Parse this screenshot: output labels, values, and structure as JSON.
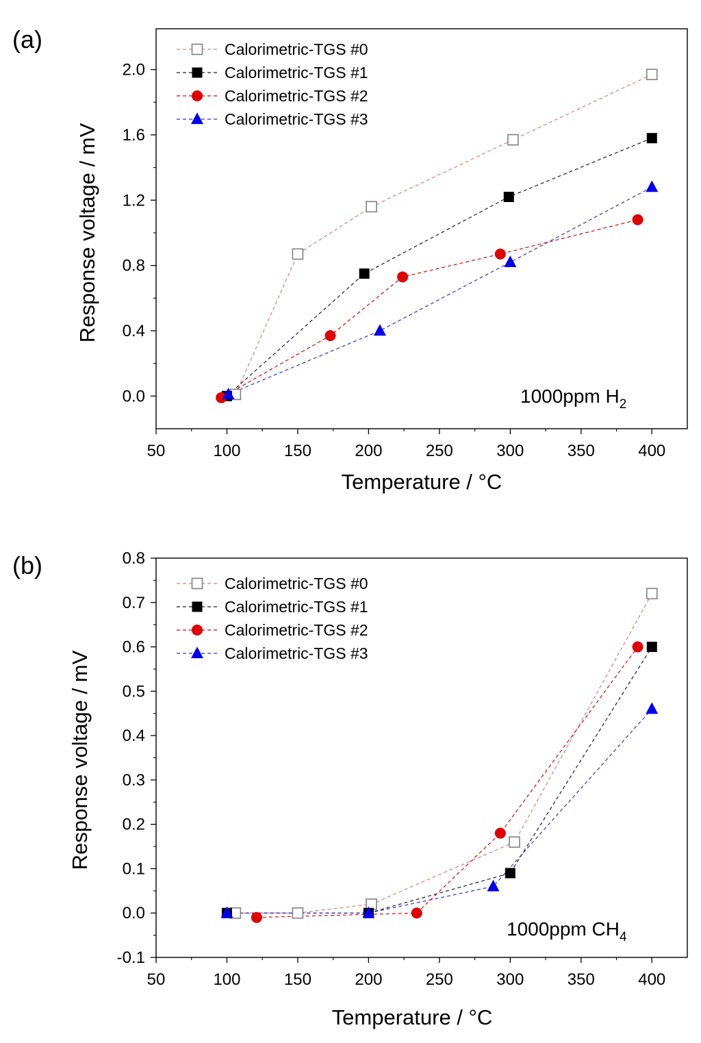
{
  "series_styles": [
    {
      "marker": "open-square",
      "color": "#808080",
      "line_color": "#d08080"
    },
    {
      "marker": "filled-square",
      "color": "#000000",
      "line_color": "#1a1a33"
    },
    {
      "marker": "circle",
      "color": "#e00000",
      "line_color": "#e00000"
    },
    {
      "marker": "triangle",
      "color": "#0000ee",
      "line_color": "#3030cc"
    }
  ],
  "chart_data": [
    {
      "type": "scatter",
      "panel_label": "(a)",
      "xlabel": "Temperature / °C",
      "ylabel": "Response voltage / mV",
      "xlim": [
        50,
        425
      ],
      "ylim": [
        -0.2,
        2.25
      ],
      "x_ticks": [
        50,
        100,
        150,
        200,
        250,
        300,
        350,
        400
      ],
      "y_ticks": [
        "0.0",
        "0.4",
        "0.8",
        "1.2",
        "1.6",
        "2.0"
      ],
      "legend_position": "top-left",
      "annotation": {
        "main": "1000ppm H",
        "sub": "2"
      },
      "series": [
        {
          "name": "Calorimetric-TGS #0",
          "x": [
            106,
            150,
            202,
            302,
            400
          ],
          "y": [
            0.01,
            0.87,
            1.16,
            1.57,
            1.97
          ]
        },
        {
          "name": "Calorimetric-TGS #1",
          "x": [
            100,
            197,
            299,
            400
          ],
          "y": [
            0.0,
            0.75,
            1.22,
            1.58
          ]
        },
        {
          "name": "Calorimetric-TGS #2",
          "x": [
            96,
            173,
            224,
            293,
            390
          ],
          "y": [
            -0.01,
            0.37,
            0.73,
            0.87,
            1.08
          ]
        },
        {
          "name": "Calorimetric-TGS #3",
          "x": [
            101,
            208,
            300,
            400
          ],
          "y": [
            0.01,
            0.4,
            0.82,
            1.28
          ]
        }
      ]
    },
    {
      "type": "scatter",
      "panel_label": "(b)",
      "xlabel": "Temperature / °C",
      "ylabel": "Response voltage / mV",
      "xlim": [
        50,
        425
      ],
      "ylim": [
        -0.1,
        0.8
      ],
      "x_ticks": [
        50,
        100,
        150,
        200,
        250,
        300,
        350,
        400
      ],
      "y_ticks": [
        "-0.1",
        "0.0",
        "0.1",
        "0.2",
        "0.3",
        "0.4",
        "0.5",
        "0.6",
        "0.7",
        "0.8"
      ],
      "legend_position": "top-left",
      "annotation": {
        "main": "1000ppm CH",
        "sub": "4"
      },
      "series": [
        {
          "name": "Calorimetric-TGS #0",
          "x": [
            106,
            150,
            202,
            303,
            400
          ],
          "y": [
            0.0,
            0.0,
            0.02,
            0.16,
            0.72
          ]
        },
        {
          "name": "Calorimetric-TGS #1",
          "x": [
            100,
            200,
            300,
            400
          ],
          "y": [
            0.0,
            0.0,
            0.09,
            0.6
          ]
        },
        {
          "name": "Calorimetric-TGS #2",
          "x": [
            121,
            234,
            293,
            390
          ],
          "y": [
            -0.01,
            0.0,
            0.18,
            0.6
          ]
        },
        {
          "name": "Calorimetric-TGS #3",
          "x": [
            100,
            200,
            288,
            400
          ],
          "y": [
            0.0,
            0.0,
            0.06,
            0.46
          ]
        }
      ]
    }
  ]
}
